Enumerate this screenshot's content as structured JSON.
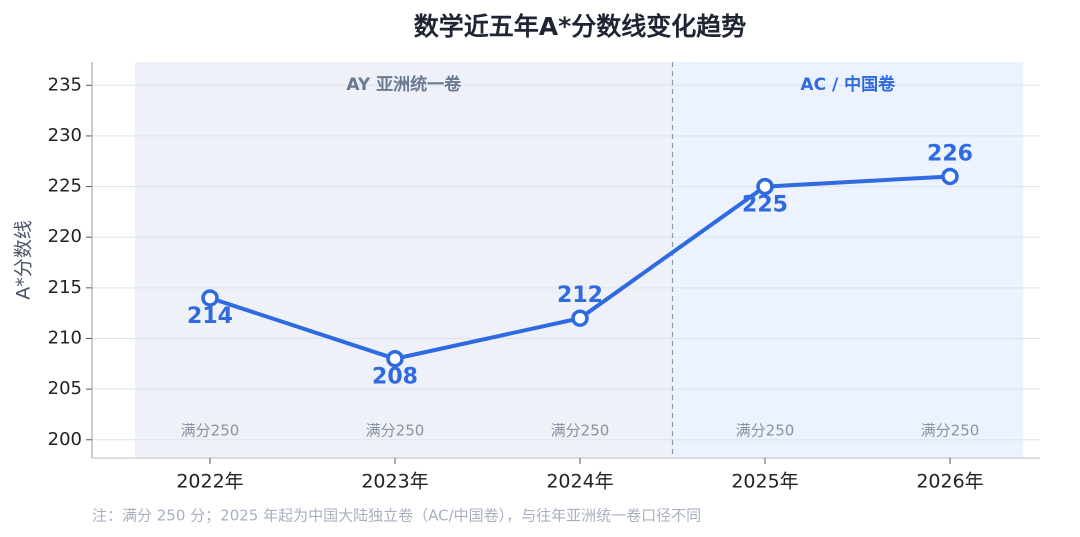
{
  "chart_data": {
    "type": "line",
    "title": "数学近五年A*分数线变化趋势",
    "y_label": "A*分数线",
    "categories": [
      "2022年",
      "2023年",
      "2024年",
      "2025年",
      "2026年"
    ],
    "series": [
      {
        "name": "A*分数线",
        "color": "#2f6ae0",
        "values": [
          214,
          208,
          212,
          225,
          226
        ]
      }
    ],
    "ylim": [
      198.2,
      237.3
    ],
    "yticks": [
      200,
      205,
      210,
      215,
      220,
      225,
      230,
      235
    ],
    "grid": true,
    "regions": [
      {
        "label": "AY 亚洲统一卷",
        "color": "#eef1f8",
        "label_color": "#6b7a90"
      },
      {
        "label": "AC / 中国卷",
        "color": "#ecf3fe",
        "label_color": "#2f6ae0"
      }
    ],
    "annotations": [
      "满分250",
      "满分250",
      "满分250",
      "满分250",
      "满分250"
    ],
    "footnote": "注：满分 250 分；2025 年起为中国大陆独立卷（AC/中国卷），与往年亚洲统一卷口径不同"
  }
}
